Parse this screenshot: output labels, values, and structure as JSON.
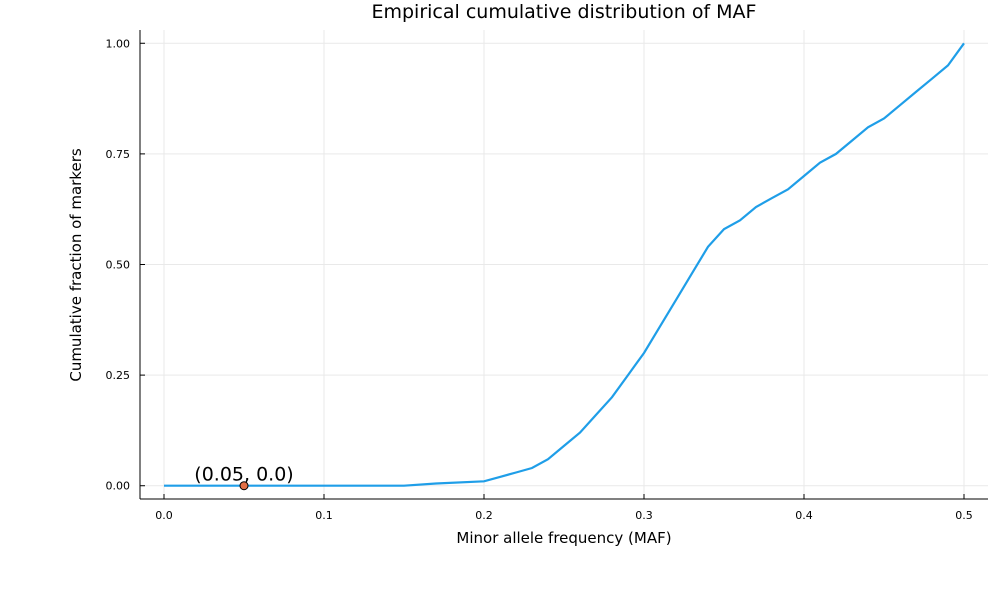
{
  "chart_data": {
    "type": "line",
    "title": "Empirical cumulative distribution of MAF",
    "xlabel": "Minor allele frequency (MAF)",
    "ylabel": "Cumulative fraction of markers",
    "xlim": [
      -0.015,
      0.515
    ],
    "ylim": [
      -0.03,
      1.03
    ],
    "xticks": [
      0.0,
      0.1,
      0.2,
      0.3,
      0.4,
      0.5
    ],
    "xtick_labels": [
      "0.0",
      "0.1",
      "0.2",
      "0.3",
      "0.4",
      "0.5"
    ],
    "yticks": [
      0.0,
      0.25,
      0.5,
      0.75,
      1.0
    ],
    "ytick_labels": [
      "0.00",
      "0.25",
      "0.50",
      "0.75",
      "1.00"
    ],
    "grid": true,
    "legend": "none",
    "series": [
      {
        "color": "#1f9ee8",
        "x": [
          0.0,
          0.15,
          0.17,
          0.2,
          0.21,
          0.22,
          0.23,
          0.24,
          0.25,
          0.26,
          0.27,
          0.28,
          0.29,
          0.3,
          0.31,
          0.32,
          0.33,
          0.34,
          0.35,
          0.36,
          0.37,
          0.38,
          0.39,
          0.4,
          0.41,
          0.42,
          0.43,
          0.44,
          0.45,
          0.46,
          0.47,
          0.48,
          0.49,
          0.5
        ],
        "y": [
          0.0,
          0.0,
          0.005,
          0.01,
          0.02,
          0.03,
          0.04,
          0.06,
          0.09,
          0.12,
          0.16,
          0.2,
          0.25,
          0.3,
          0.36,
          0.42,
          0.48,
          0.54,
          0.58,
          0.6,
          0.63,
          0.65,
          0.67,
          0.7,
          0.73,
          0.75,
          0.78,
          0.81,
          0.83,
          0.86,
          0.89,
          0.92,
          0.95,
          1.0
        ]
      }
    ],
    "marker": {
      "x": 0.05,
      "y": 0.0,
      "color": "#e26f46"
    },
    "annotation": {
      "text": "(0.05, 0.0)",
      "x": 0.05,
      "y": 0.0
    }
  }
}
